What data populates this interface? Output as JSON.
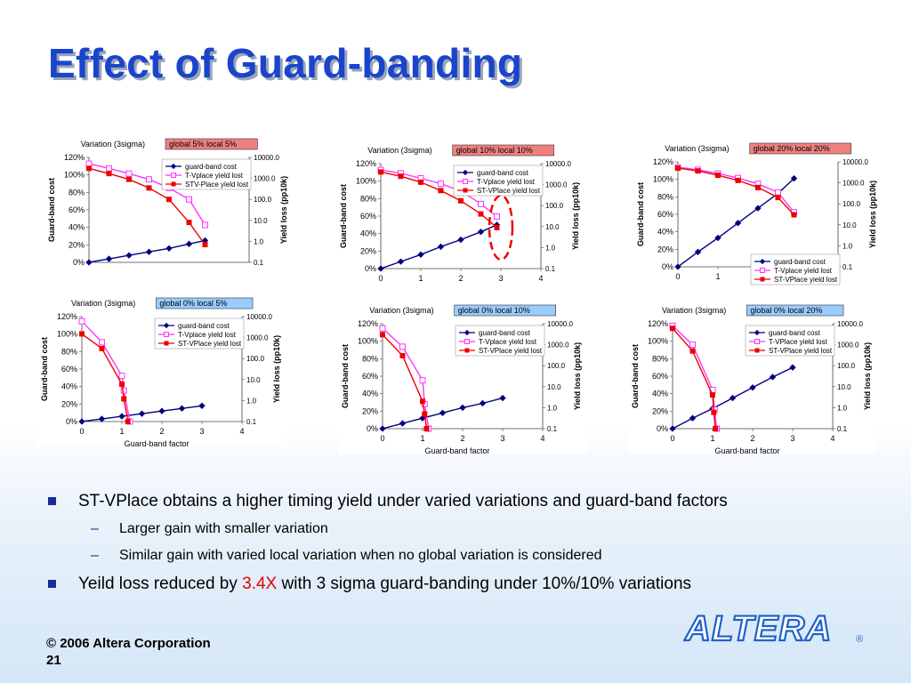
{
  "slide": {
    "title": "Effect of Guard-banding",
    "bullets": [
      {
        "text": "ST-VPlace obtains a higher timing yield under varied variations and guard-band factors",
        "subs": [
          "Larger gain with smaller variation",
          "Similar gain with varied local variation when no global variation is considered"
        ]
      },
      {
        "pre": "Yeild loss reduced by ",
        "highlight": "3.4X",
        "post": " with 3 sigma guard-banding under 10%/10% variations"
      }
    ],
    "footer": {
      "copyright": "© 2006 Altera Corporation",
      "page": "21"
    },
    "logo_text": "ALTERA",
    "colors": {
      "title": "#1a44cc",
      "highlight": "#e00000",
      "bullet": "#1a2a9a",
      "cost_series": "#000080",
      "tvplace_series": "#ff33ff",
      "stvplace_series": "#ee0000",
      "circle": "#ee0000"
    }
  },
  "chart_data": [
    {
      "type": "line",
      "title_prefix": "Variation (3sigma)",
      "title_badge": "global 5% local 5%",
      "badge_color": "#f08080",
      "xlabel": "",
      "ylabel": "Guard-band cost",
      "y2label": "Yield loss (pp10k)",
      "xlim": [
        0,
        4
      ],
      "xticks": [],
      "yticks": [
        "0%",
        "20%",
        "40%",
        "60%",
        "80%",
        "100%",
        "120%"
      ],
      "y2ticks": [
        "0.1",
        "1.0",
        "10.0",
        "100.0",
        "1000.0",
        "10000.0"
      ],
      "y2_scale": "log",
      "legend": [
        "guard-band cost",
        "T-Vplace yield lost",
        "STV-Place yield lost"
      ],
      "legend_position": "top-right",
      "series": [
        {
          "name": "guard-band cost",
          "axis": "left",
          "x": [
            0,
            0.5,
            1,
            1.5,
            2,
            2.5,
            2.9
          ],
          "values": [
            0,
            4,
            8,
            12,
            16,
            21,
            25
          ]
        },
        {
          "name": "T-Vplace yield lost",
          "axis": "right",
          "x": [
            0,
            0.5,
            1,
            1.5,
            2,
            2.5,
            2.9
          ],
          "values": [
            5000,
            3000,
            1700,
            900,
            350,
            100,
            6
          ]
        },
        {
          "name": "STV-Place yield lost",
          "axis": "right",
          "x": [
            0,
            0.5,
            1,
            1.5,
            2,
            2.5,
            2.9
          ],
          "values": [
            3000,
            1700,
            900,
            350,
            100,
            8,
            0.7
          ]
        }
      ]
    },
    {
      "type": "line",
      "title_prefix": "Variation (3sigma)",
      "title_badge": "global 10% local 10%",
      "badge_color": "#f08080",
      "xlabel": "",
      "ylabel": "Guard-band cost",
      "y2label": "Yield loss (pp10k)",
      "xlim": [
        0,
        4
      ],
      "xticks": [
        "0",
        "1",
        "2",
        "3",
        "4"
      ],
      "yticks": [
        "0%",
        "20%",
        "40%",
        "60%",
        "80%",
        "100%",
        "120%"
      ],
      "y2ticks": [
        "0.1",
        "1.0",
        "10.0",
        "100.0",
        "1000.0",
        "10000.0"
      ],
      "y2_scale": "log",
      "legend": [
        "guard-band cost",
        "T-Vplace yield lost",
        "ST-VPlace yield lost"
      ],
      "legend_position": "top-right",
      "series": [
        {
          "name": "guard-band cost",
          "axis": "left",
          "x": [
            0,
            0.5,
            1,
            1.5,
            2,
            2.5,
            2.9
          ],
          "values": [
            0,
            8,
            16,
            25,
            33,
            42,
            50
          ]
        },
        {
          "name": "T-Vplace yield lost",
          "axis": "right",
          "x": [
            0,
            0.5,
            1,
            1.5,
            2,
            2.5,
            2.9
          ],
          "values": [
            5000,
            3500,
            2000,
            1100,
            500,
            120,
            30
          ]
        },
        {
          "name": "ST-VPlace yield lost",
          "axis": "right",
          "x": [
            0,
            0.5,
            1,
            1.5,
            2,
            2.5,
            2.9
          ],
          "values": [
            4000,
            2500,
            1300,
            520,
            170,
            40,
            9
          ]
        }
      ],
      "annotation": "red dashed ellipse around x=3"
    },
    {
      "type": "line",
      "title_prefix": "Variation (3sigma)",
      "title_badge": "global 20% local 20%",
      "badge_color": "#f08080",
      "xlabel": "",
      "ylabel": "Guard-band cost",
      "y2label": "Yield loss (pp10k)",
      "xlim": [
        0,
        4
      ],
      "xticks": [
        "0",
        "1",
        "2",
        "3",
        "4"
      ],
      "yticks": [
        "0%",
        "20%",
        "40%",
        "60%",
        "80%",
        "100%",
        "120%"
      ],
      "y2ticks": [
        "0.1",
        "1.0",
        "10.0",
        "100.0",
        "1000.0",
        "10000.0"
      ],
      "y2_scale": "log",
      "legend": [
        "guard-band cost",
        "T-Vplace yield lost",
        "ST-VPlace yield lost"
      ],
      "legend_position": "bottom-right",
      "series": [
        {
          "name": "guard-band cost",
          "axis": "left",
          "x": [
            0,
            0.5,
            1,
            1.5,
            2,
            2.5,
            2.9
          ],
          "values": [
            0,
            17,
            33,
            50,
            67,
            84,
            101
          ]
        },
        {
          "name": "T-Vplace yield lost",
          "axis": "right",
          "x": [
            0,
            0.5,
            1,
            1.5,
            2,
            2.5,
            2.9
          ],
          "values": [
            5500,
            4200,
            2800,
            1700,
            900,
            350,
            40
          ]
        },
        {
          "name": "ST-VPlace yield lost",
          "axis": "right",
          "x": [
            0,
            0.5,
            1,
            1.5,
            2,
            2.5,
            2.9
          ],
          "values": [
            5000,
            3700,
            2300,
            1300,
            600,
            200,
            30
          ]
        }
      ]
    },
    {
      "type": "line",
      "title_prefix": "Variation (3sigma)",
      "title_badge": "global 0%  local 5%",
      "badge_color": "#99ccff",
      "xlabel": "Guard-band factor",
      "ylabel": "Guard-band cost",
      "y2label": "Yield loss (pp10k)",
      "xlim": [
        0,
        4
      ],
      "xticks": [
        "0",
        "1",
        "2",
        "3",
        "4"
      ],
      "yticks": [
        "0%",
        "20%",
        "40%",
        "60%",
        "80%",
        "100%",
        "120%"
      ],
      "y2ticks": [
        "0.1",
        "1.0",
        "10.0",
        "100.0",
        "1000.0",
        "10000.0"
      ],
      "y2_scale": "log",
      "legend": [
        "guard-band cost",
        "T-Vplace yield lost",
        "ST-VPlace yield lost"
      ],
      "legend_position": "top-right",
      "series": [
        {
          "name": "guard-band cost",
          "axis": "left",
          "x": [
            0,
            0.5,
            1,
            1.5,
            2,
            2.5,
            3
          ],
          "values": [
            0,
            3,
            6,
            9,
            12,
            15,
            18
          ]
        },
        {
          "name": "T-Vplace yield lost",
          "axis": "right",
          "x": [
            0,
            0.5,
            1,
            1.05,
            1.2
          ],
          "values": [
            6000,
            600,
            15,
            3,
            0.1
          ]
        },
        {
          "name": "ST-VPlace yield lost",
          "axis": "right",
          "x": [
            0,
            0.5,
            1,
            1.05,
            1.15
          ],
          "values": [
            1500,
            300,
            6,
            1.2,
            0.1
          ]
        }
      ]
    },
    {
      "type": "line",
      "title_prefix": "Variation (3sigma)",
      "title_badge": "global 0%  local 10%",
      "badge_color": "#99ccff",
      "xlabel": "Guard-band factor",
      "ylabel": "Guard-band cost",
      "y2label": "Yield loss (pp10k)",
      "xlim": [
        0,
        4
      ],
      "xticks": [
        "0",
        "1",
        "2",
        "3",
        "4"
      ],
      "yticks": [
        "0%",
        "20%",
        "40%",
        "60%",
        "80%",
        "100%",
        "120%"
      ],
      "y2ticks": [
        "0.1",
        "1.0",
        "10.0",
        "100.0",
        "1000.0",
        "10000.0"
      ],
      "y2_scale": "log",
      "legend": [
        "guard-band cost",
        "T-Vplace yield lost",
        "ST-VPlace yield lost"
      ],
      "legend_position": "top-right",
      "series": [
        {
          "name": "guard-band cost",
          "axis": "left",
          "x": [
            0,
            0.5,
            1,
            1.5,
            2,
            2.5,
            3
          ],
          "values": [
            0,
            6,
            12,
            18,
            24,
            29,
            35
          ]
        },
        {
          "name": "T-Vplace yield lost",
          "axis": "right",
          "x": [
            0,
            0.5,
            1,
            1.05,
            1.15
          ],
          "values": [
            6000,
            800,
            20,
            1.5,
            0.1
          ]
        },
        {
          "name": "ST-VPlace yield lost",
          "axis": "right",
          "x": [
            0,
            0.5,
            1,
            1.05,
            1.1
          ],
          "values": [
            3000,
            300,
            2,
            0.5,
            0.1
          ]
        }
      ]
    },
    {
      "type": "line",
      "title_prefix": "Variation (3sigma)",
      "title_badge": "global 0% local 20%",
      "badge_color": "#99ccff",
      "xlabel": "Guard-band factor",
      "ylabel": "Guard-band cost",
      "y2label": "Yield loss (pp10k)",
      "xlim": [
        0,
        4
      ],
      "xticks": [
        "0",
        "1",
        "2",
        "3",
        "4"
      ],
      "yticks": [
        "0%",
        "20%",
        "40%",
        "60%",
        "80%",
        "100%",
        "120%"
      ],
      "y2ticks": [
        "0.1",
        "1.0",
        "10.0",
        "100.0",
        "1000.0",
        "10000.0"
      ],
      "y2_scale": "log",
      "legend": [
        "guard-band cost",
        "T-VPlace yield lost",
        "ST-VPlace yield lost"
      ],
      "legend_position": "top-right",
      "series": [
        {
          "name": "guard-band cost",
          "axis": "left",
          "x": [
            0,
            0.5,
            1,
            1.5,
            2,
            2.5,
            3
          ],
          "values": [
            0,
            12,
            23,
            35,
            47,
            59,
            70
          ]
        },
        {
          "name": "T-VPlace yield lost",
          "axis": "right",
          "x": [
            0,
            0.5,
            1,
            1.05,
            1.1
          ],
          "values": [
            8000,
            1000,
            7,
            0.8,
            0.1
          ]
        },
        {
          "name": "ST-VPlace yield lost",
          "axis": "right",
          "x": [
            0,
            0.5,
            1,
            1.03,
            1.07
          ],
          "values": [
            6000,
            500,
            4,
            0.6,
            0.1
          ]
        }
      ]
    }
  ]
}
